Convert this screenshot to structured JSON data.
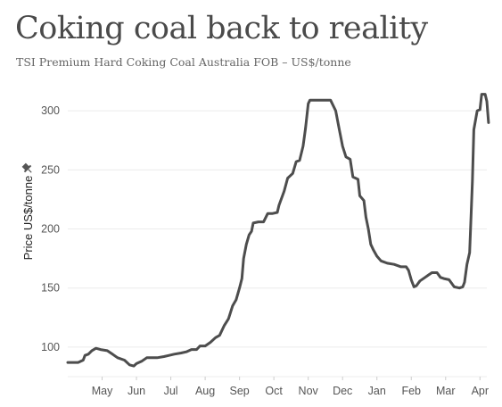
{
  "title": "Coking coal back to reality",
  "subtitle": "TSI Premium Hard Coking Coal Australia FOB – US$/tonne",
  "icons": {
    "axis_label_icon": "pin-icon"
  },
  "colors": {
    "line": "#4d4d4d",
    "grid": "#ececec",
    "title": "#4a4a4a",
    "subtitle": "#666666",
    "tick_text": "#555555"
  },
  "chart_data": {
    "type": "line",
    "title": "Coking coal back to reality",
    "subtitle": "TSI Premium Hard Coking Coal Australia FOB – US$/tonne",
    "ylabel": "Price US$/tonne",
    "xlabel": "",
    "ylim": [
      75,
      322
    ],
    "yticks": [
      100,
      150,
      200,
      250,
      300
    ],
    "xlim": [
      0,
      12.2
    ],
    "xticks": [
      {
        "label": "May",
        "x": 1
      },
      {
        "label": "Jun",
        "x": 2
      },
      {
        "label": "Jul",
        "x": 3
      },
      {
        "label": "Aug",
        "x": 4
      },
      {
        "label": "Sep",
        "x": 5
      },
      {
        "label": "Oct",
        "x": 6
      },
      {
        "label": "Nov",
        "x": 7
      },
      {
        "label": "Dec",
        "x": 8
      },
      {
        "label": "Jan",
        "x": 9
      },
      {
        "label": "Feb",
        "x": 10
      },
      {
        "label": "Mar",
        "x": 11
      },
      {
        "label": "Apr",
        "x": 12
      }
    ],
    "grid": "horizontal",
    "series": [
      {
        "points": [
          [
            0.0,
            87
          ],
          [
            0.3,
            87
          ],
          [
            0.45,
            89
          ],
          [
            0.5,
            93
          ],
          [
            0.6,
            94
          ],
          [
            0.7,
            97
          ],
          [
            0.82,
            99
          ],
          [
            0.95,
            98
          ],
          [
            1.15,
            97
          ],
          [
            1.3,
            94
          ],
          [
            1.45,
            91
          ],
          [
            1.65,
            89
          ],
          [
            1.8,
            85
          ],
          [
            1.92,
            84
          ],
          [
            2.0,
            86
          ],
          [
            2.15,
            88
          ],
          [
            2.3,
            91
          ],
          [
            2.45,
            91
          ],
          [
            2.6,
            91
          ],
          [
            2.8,
            92
          ],
          [
            2.95,
            93
          ],
          [
            3.1,
            94
          ],
          [
            3.3,
            95
          ],
          [
            3.45,
            96
          ],
          [
            3.6,
            98
          ],
          [
            3.75,
            98
          ],
          [
            3.85,
            101
          ],
          [
            4.0,
            101
          ],
          [
            4.15,
            104
          ],
          [
            4.3,
            108
          ],
          [
            4.42,
            110
          ],
          [
            4.55,
            118
          ],
          [
            4.68,
            124
          ],
          [
            4.8,
            135
          ],
          [
            4.9,
            140
          ],
          [
            5.0,
            150
          ],
          [
            5.07,
            158
          ],
          [
            5.12,
            175
          ],
          [
            5.2,
            187
          ],
          [
            5.28,
            195
          ],
          [
            5.35,
            198
          ],
          [
            5.4,
            205
          ],
          [
            5.55,
            206
          ],
          [
            5.7,
            206
          ],
          [
            5.82,
            213
          ],
          [
            5.95,
            213
          ],
          [
            6.1,
            214
          ],
          [
            6.15,
            220
          ],
          [
            6.3,
            232
          ],
          [
            6.4,
            243
          ],
          [
            6.55,
            247
          ],
          [
            6.65,
            257
          ],
          [
            6.75,
            258
          ],
          [
            6.85,
            270
          ],
          [
            6.92,
            285
          ],
          [
            7.0,
            306
          ],
          [
            7.05,
            309
          ],
          [
            7.3,
            309
          ],
          [
            7.55,
            309
          ],
          [
            7.65,
            309
          ],
          [
            7.8,
            300
          ],
          [
            7.9,
            285
          ],
          [
            8.0,
            270
          ],
          [
            8.1,
            261
          ],
          [
            8.22,
            259
          ],
          [
            8.3,
            244
          ],
          [
            8.45,
            242
          ],
          [
            8.5,
            228
          ],
          [
            8.62,
            224
          ],
          [
            8.68,
            210
          ],
          [
            8.75,
            200
          ],
          [
            8.82,
            187
          ],
          [
            8.9,
            182
          ],
          [
            9.0,
            177
          ],
          [
            9.12,
            173
          ],
          [
            9.3,
            171
          ],
          [
            9.5,
            170
          ],
          [
            9.7,
            168
          ],
          [
            9.85,
            168
          ],
          [
            9.92,
            165
          ],
          [
            10.0,
            157
          ],
          [
            10.08,
            151
          ],
          [
            10.15,
            152
          ],
          [
            10.25,
            156
          ],
          [
            10.4,
            159
          ],
          [
            10.5,
            161
          ],
          [
            10.6,
            163
          ],
          [
            10.75,
            163
          ],
          [
            10.85,
            159
          ],
          [
            10.95,
            158
          ],
          [
            11.1,
            157
          ],
          [
            11.25,
            151
          ],
          [
            11.4,
            150
          ],
          [
            11.5,
            151
          ],
          [
            11.55,
            155
          ],
          [
            11.62,
            170
          ],
          [
            11.7,
            180
          ],
          [
            11.78,
            240
          ],
          [
            11.82,
            284
          ],
          [
            11.92,
            300
          ],
          [
            12.0,
            301
          ],
          [
            12.05,
            314
          ],
          [
            12.15,
            314
          ],
          [
            12.2,
            308
          ],
          [
            12.25,
            290
          ]
        ]
      }
    ]
  }
}
